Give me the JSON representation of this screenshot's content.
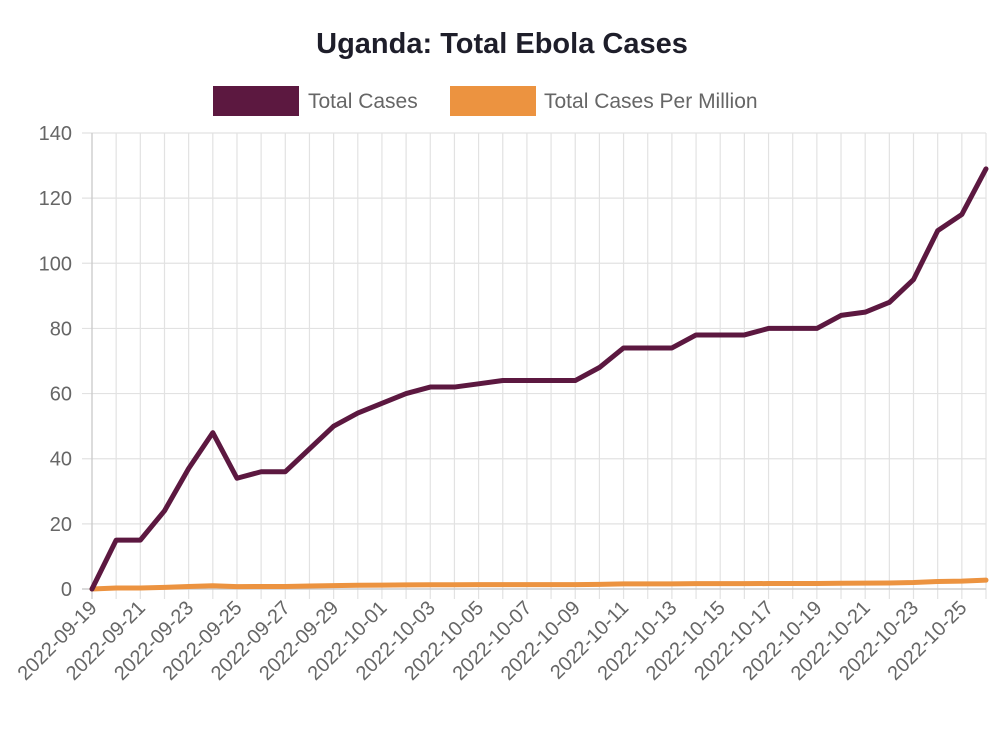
{
  "chart_data": {
    "type": "line",
    "title": "Uganda: Total Ebola Cases",
    "xlabel": "",
    "ylabel": "",
    "ylim": [
      0,
      140
    ],
    "y_ticks": [
      0,
      20,
      40,
      60,
      80,
      100,
      120,
      140
    ],
    "x_ticks": [
      "2022-09-19",
      "2022-09-21",
      "2022-09-23",
      "2022-09-25",
      "2022-09-27",
      "2022-09-29",
      "2022-10-01",
      "2022-10-03",
      "2022-10-05",
      "2022-10-07",
      "2022-10-09",
      "2022-10-11",
      "2022-10-13",
      "2022-10-15",
      "2022-10-17",
      "2022-10-19",
      "2022-10-21",
      "2022-10-23",
      "2022-10-25"
    ],
    "grid": true,
    "legend_position": "top",
    "x": [
      "2022-09-19",
      "2022-09-20",
      "2022-09-21",
      "2022-09-22",
      "2022-09-23",
      "2022-09-24",
      "2022-09-25",
      "2022-09-26",
      "2022-09-27",
      "2022-09-28",
      "2022-09-29",
      "2022-09-30",
      "2022-10-01",
      "2022-10-02",
      "2022-10-03",
      "2022-10-04",
      "2022-10-05",
      "2022-10-06",
      "2022-10-07",
      "2022-10-08",
      "2022-10-09",
      "2022-10-10",
      "2022-10-11",
      "2022-10-12",
      "2022-10-13",
      "2022-10-14",
      "2022-10-15",
      "2022-10-16",
      "2022-10-17",
      "2022-10-18",
      "2022-10-19",
      "2022-10-20",
      "2022-10-21",
      "2022-10-22",
      "2022-10-23",
      "2022-10-24",
      "2022-10-25",
      "2022-10-26"
    ],
    "series": [
      {
        "name": "Total Cases",
        "color": "#5c1840",
        "values": [
          0,
          15,
          15,
          24,
          37,
          48,
          34,
          36,
          36,
          43,
          50,
          54,
          57,
          60,
          62,
          62,
          63,
          64,
          64,
          64,
          64,
          68,
          74,
          74,
          74,
          78,
          78,
          78,
          80,
          80,
          80,
          84,
          85,
          88,
          95,
          110,
          115,
          129
        ]
      },
      {
        "name": "Total Cases Per Million",
        "color": "#ec9340",
        "values": [
          0,
          0.32,
          0.32,
          0.51,
          0.78,
          1.01,
          0.72,
          0.76,
          0.76,
          0.91,
          1.05,
          1.14,
          1.2,
          1.26,
          1.31,
          1.31,
          1.33,
          1.35,
          1.35,
          1.35,
          1.35,
          1.43,
          1.56,
          1.56,
          1.56,
          1.64,
          1.64,
          1.64,
          1.68,
          1.68,
          1.68,
          1.77,
          1.79,
          1.85,
          2.0,
          2.32,
          2.42,
          2.72
        ]
      }
    ]
  }
}
